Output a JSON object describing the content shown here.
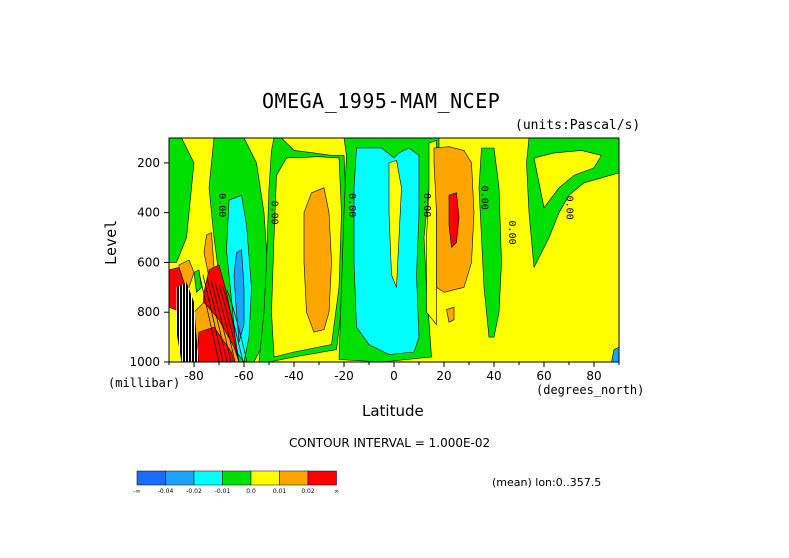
{
  "chart_data": {
    "type": "heatmap",
    "title": "OMEGA_1995-MAM_NCEP",
    "units_label": "(units:Pascal/s)",
    "ylabel": "Level",
    "yunit": "(millibar)",
    "xlabel": "Latitude",
    "xunit": "(degrees_north)",
    "xlim": [
      -90,
      90
    ],
    "ylim": [
      1000,
      100
    ],
    "x_ticks": [
      -80,
      -60,
      -40,
      -20,
      0,
      20,
      40,
      60,
      80
    ],
    "y_ticks": [
      200,
      400,
      600,
      800,
      1000
    ],
    "contour_interval": "CONTOUR INTERVAL = 1.000E-02",
    "mean_note": "(mean) lon:0..357.5",
    "contour_labels": [
      {
        "text": "0.00",
        "lat": -70,
        "level": 370
      },
      {
        "text": "0.00",
        "lat": -49,
        "level": 400
      },
      {
        "text": "0.00",
        "lat": -18,
        "level": 370
      },
      {
        "text": "0.00",
        "lat": 12,
        "level": 370
      },
      {
        "text": "0.00",
        "lat": 35,
        "level": 340
      },
      {
        "text": "0.00",
        "lat": 46,
        "level": 480
      },
      {
        "text": "0.00",
        "lat": 69,
        "level": 380
      }
    ],
    "colorbar": {
      "colors": [
        "#1a6cff",
        "#1aa3ff",
        "#00ffff",
        "#00e000",
        "#ffff00",
        "#ffa500",
        "#ff0000"
      ],
      "labels": [
        "-∞",
        "-0.04",
        "-0.02",
        "-0.01",
        "0.0",
        "0.01",
        "0.02",
        "∞"
      ]
    },
    "regions": [
      {
        "color": "#00e000",
        "pts": [
          [
            -90,
            100
          ],
          [
            -85,
            100
          ],
          [
            -80,
            200
          ],
          [
            -83,
            500
          ],
          [
            -87,
            600
          ],
          [
            -90,
            600
          ]
        ]
      },
      {
        "color": "#00e000",
        "pts": [
          [
            -72,
            100
          ],
          [
            -60,
            100
          ],
          [
            -55,
            200
          ],
          [
            -52,
            400
          ],
          [
            -50,
            700
          ],
          [
            -51,
            900
          ],
          [
            -56,
            1000
          ],
          [
            -64,
            1000
          ],
          [
            -68,
            800
          ],
          [
            -72,
            500
          ],
          [
            -74,
            300
          ]
        ]
      },
      {
        "color": "#00ffff",
        "pts": [
          [
            -66,
            350
          ],
          [
            -61,
            330
          ],
          [
            -59,
            450
          ],
          [
            -57,
            700
          ],
          [
            -58,
            900
          ],
          [
            -60,
            1000
          ],
          [
            -63,
            960
          ],
          [
            -65,
            750
          ],
          [
            -67,
            550
          ]
        ]
      },
      {
        "color": "#1aa3ff",
        "pts": [
          [
            -63,
            560
          ],
          [
            -61,
            550
          ],
          [
            -60,
            700
          ],
          [
            -60,
            850
          ],
          [
            -62,
            920
          ],
          [
            -63,
            800
          ],
          [
            -64,
            650
          ]
        ]
      },
      {
        "color": "#ffa500",
        "pts": [
          [
            -86,
            610
          ],
          [
            -82,
            590
          ],
          [
            -80,
            640
          ],
          [
            -82,
            700
          ],
          [
            -86,
            700
          ]
        ]
      },
      {
        "color": "#ffa500",
        "pts": [
          [
            -75,
            490
          ],
          [
            -73,
            480
          ],
          [
            -72,
            620
          ],
          [
            -74,
            660
          ],
          [
            -76,
            560
          ]
        ]
      },
      {
        "color": "#ff0000",
        "pts": [
          [
            -90,
            630
          ],
          [
            -86,
            620
          ],
          [
            -84,
            680
          ],
          [
            -83,
            760
          ],
          [
            -85,
            800
          ],
          [
            -90,
            780
          ]
        ]
      },
      {
        "color": "#ff0000",
        "pts": [
          [
            -74,
            630
          ],
          [
            -70,
            610
          ],
          [
            -67,
            720
          ],
          [
            -64,
            870
          ],
          [
            -62,
            1000
          ],
          [
            -76,
            1000
          ],
          [
            -77,
            880
          ],
          [
            -76,
            720
          ]
        ]
      },
      {
        "color": "#ffa500",
        "pts": [
          [
            -80,
            800
          ],
          [
            -76,
            760
          ],
          [
            -70,
            830
          ],
          [
            -64,
            940
          ],
          [
            -62,
            1000
          ],
          [
            -82,
            1000
          ]
        ]
      },
      {
        "color": "#ff0000",
        "pts": [
          [
            -78,
            880
          ],
          [
            -72,
            860
          ],
          [
            -65,
            960
          ],
          [
            -64,
            1000
          ],
          [
            -79,
            1000
          ]
        ]
      },
      {
        "color": "#00e000",
        "pts": [
          [
            -80,
            640
          ],
          [
            -78,
            630
          ],
          [
            -77,
            700
          ],
          [
            -79,
            720
          ]
        ]
      },
      {
        "color": "#00e000",
        "pts": [
          [
            -48,
            100
          ],
          [
            -45,
            100
          ],
          [
            -40,
            150
          ],
          [
            -32,
            160
          ],
          [
            -25,
            170
          ],
          [
            -20,
            170
          ],
          [
            -19,
            400
          ],
          [
            -20,
            700
          ],
          [
            -23,
            950
          ],
          [
            -40,
            980
          ],
          [
            -50,
            1000
          ],
          [
            -54,
            1000
          ],
          [
            -52,
            800
          ],
          [
            -51,
            600
          ],
          [
            -50,
            300
          ],
          [
            -49,
            150
          ]
        ]
      },
      {
        "color": "#ffff00",
        "pts": [
          [
            -43,
            180
          ],
          [
            -30,
            175
          ],
          [
            -22,
            180
          ],
          [
            -21,
            400
          ],
          [
            -22,
            700
          ],
          [
            -25,
            930
          ],
          [
            -40,
            960
          ],
          [
            -48,
            980
          ],
          [
            -49,
            800
          ],
          [
            -48,
            500
          ],
          [
            -47,
            250
          ]
        ]
      },
      {
        "color": "#ffa500",
        "pts": [
          [
            -33,
            320
          ],
          [
            -28,
            300
          ],
          [
            -26,
            400
          ],
          [
            -25,
            600
          ],
          [
            -26,
            800
          ],
          [
            -28,
            870
          ],
          [
            -32,
            880
          ],
          [
            -35,
            800
          ],
          [
            -36,
            600
          ],
          [
            -36,
            400
          ]
        ]
      },
      {
        "color": "#00e000",
        "pts": [
          [
            -20,
            100
          ],
          [
            18,
            100
          ],
          [
            18,
            180
          ],
          [
            14,
            300
          ],
          [
            12,
            500
          ],
          [
            13,
            700
          ],
          [
            15,
            980
          ],
          [
            -5,
            1000
          ],
          [
            -22,
            990
          ],
          [
            -21,
            700
          ],
          [
            -20,
            400
          ],
          [
            -19,
            170
          ]
        ]
      },
      {
        "color": "#00ffff",
        "pts": [
          [
            -15,
            140
          ],
          [
            -5,
            140
          ],
          [
            0,
            180
          ],
          [
            2,
            160
          ],
          [
            6,
            140
          ],
          [
            10,
            170
          ],
          [
            10,
            400
          ],
          [
            9,
            650
          ],
          [
            10,
            900
          ],
          [
            8,
            960
          ],
          [
            -2,
            970
          ],
          [
            -10,
            930
          ],
          [
            -15,
            860
          ],
          [
            -16,
            600
          ],
          [
            -16,
            300
          ]
        ]
      },
      {
        "color": "#ffff00",
        "pts": [
          [
            -2,
            200
          ],
          [
            1,
            190
          ],
          [
            3,
            300
          ],
          [
            2,
            500
          ],
          [
            1,
            700
          ],
          [
            -1,
            650
          ],
          [
            -2,
            400
          ]
        ]
      },
      {
        "color": "#ffff00",
        "pts": [
          [
            14,
            120
          ],
          [
            17,
            110
          ],
          [
            17,
            500
          ],
          [
            17,
            850
          ],
          [
            13,
            800
          ],
          [
            13,
            500
          ],
          [
            14,
            300
          ]
        ]
      },
      {
        "color": "#00e000",
        "pts": [
          [
            35,
            140
          ],
          [
            40,
            140
          ],
          [
            42,
            300
          ],
          [
            43,
            600
          ],
          [
            42,
            800
          ],
          [
            40,
            900
          ],
          [
            38,
            900
          ],
          [
            36,
            700
          ],
          [
            35,
            500
          ],
          [
            34,
            300
          ]
        ]
      },
      {
        "color": "#ffa500",
        "pts": [
          [
            16,
            140
          ],
          [
            22,
            135
          ],
          [
            28,
            150
          ],
          [
            31,
            200
          ],
          [
            32,
            400
          ],
          [
            31,
            600
          ],
          [
            28,
            700
          ],
          [
            20,
            720
          ],
          [
            17,
            700
          ],
          [
            17,
            400
          ],
          [
            16,
            200
          ]
        ]
      },
      {
        "color": "#ff0000",
        "pts": [
          [
            22,
            330
          ],
          [
            25,
            320
          ],
          [
            26,
            420
          ],
          [
            25,
            520
          ],
          [
            23,
            540
          ],
          [
            22,
            450
          ]
        ]
      },
      {
        "color": "#ffa500",
        "pts": [
          [
            21,
            790
          ],
          [
            24,
            780
          ],
          [
            24,
            830
          ],
          [
            22,
            840
          ]
        ]
      },
      {
        "color": "#00e000",
        "pts": [
          [
            54,
            100
          ],
          [
            90,
            100
          ],
          [
            90,
            240
          ],
          [
            83,
            260
          ],
          [
            76,
            280
          ],
          [
            70,
            330
          ],
          [
            66,
            400
          ],
          [
            62,
            500
          ],
          [
            56,
            620
          ],
          [
            54,
            400
          ],
          [
            53,
            200
          ]
        ]
      },
      {
        "color": "#ffff00",
        "pts": [
          [
            56,
            180
          ],
          [
            64,
            160
          ],
          [
            75,
            150
          ],
          [
            83,
            170
          ],
          [
            80,
            220
          ],
          [
            72,
            250
          ],
          [
            66,
            300
          ],
          [
            60,
            380
          ]
        ]
      },
      {
        "color": "#1aa3ff",
        "pts": [
          [
            88,
            950
          ],
          [
            90,
            940
          ],
          [
            90,
            1000
          ],
          [
            87,
            1000
          ]
        ]
      }
    ],
    "hatch_region": {
      "pts": [
        [
          -87,
          700
        ],
        [
          -83,
          680
        ],
        [
          -80,
          760
        ],
        [
          -79,
          900
        ],
        [
          -78,
          1000
        ],
        [
          -85,
          1000
        ],
        [
          -87,
          880
        ]
      ]
    }
  }
}
